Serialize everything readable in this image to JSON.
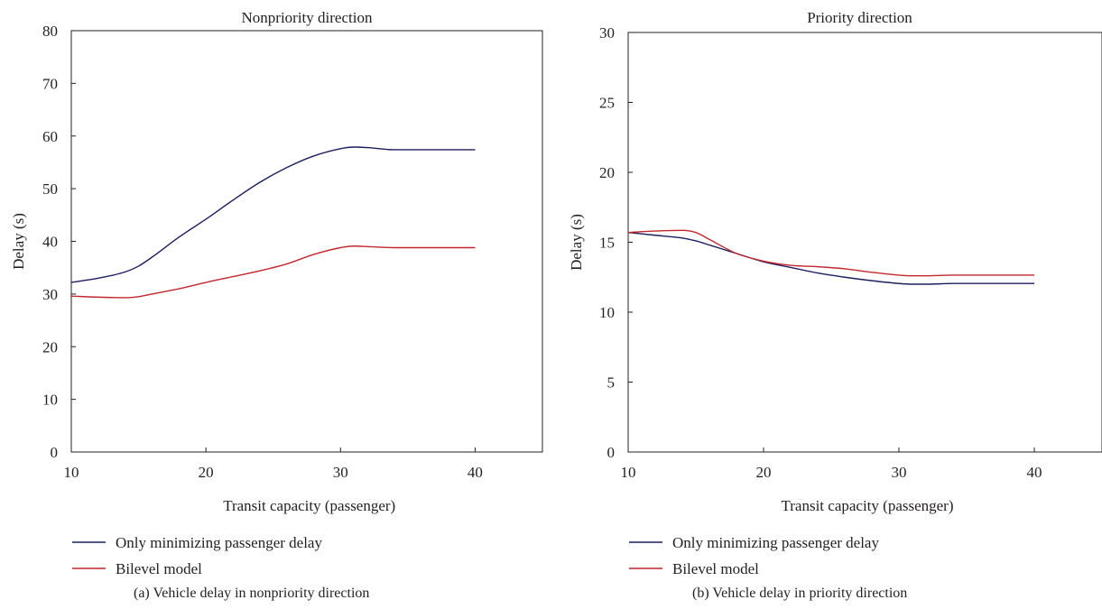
{
  "chart_data": [
    {
      "type": "line",
      "panel": "a",
      "title": "Nonpriority direction",
      "xlabel": "Transit capacity (passenger)",
      "ylabel": "Delay (s)",
      "xlim": [
        10,
        45
      ],
      "ylim": [
        0,
        80
      ],
      "xticks": [
        "10",
        "20",
        "30",
        "40"
      ],
      "yticks": [
        "0",
        "10",
        "20",
        "30",
        "40",
        "50",
        "60",
        "70",
        "80"
      ],
      "x": [
        10,
        12,
        14,
        15,
        16,
        18,
        20,
        22,
        24,
        26,
        28,
        30,
        31,
        32,
        34,
        36,
        38,
        40
      ],
      "series": [
        {
          "name": "Only minimizing passenger delay",
          "color": "#1b1f5e",
          "values": [
            32.2,
            33.0,
            34.2,
            35.3,
            37.0,
            40.8,
            44.2,
            47.8,
            51.2,
            54.0,
            56.2,
            57.6,
            57.9,
            57.8,
            57.4,
            57.4,
            57.4,
            57.4
          ]
        },
        {
          "name": "Bilevel model",
          "color": "#c1272d",
          "values": [
            29.6,
            29.4,
            29.3,
            29.5,
            30.0,
            31.0,
            32.2,
            33.3,
            34.4,
            35.7,
            37.5,
            38.8,
            39.1,
            39.0,
            38.8,
            38.8,
            38.8,
            38.8
          ]
        }
      ],
      "legend_position": "below",
      "caption": "(a)  Vehicle delay in nonpriority direction"
    },
    {
      "type": "line",
      "panel": "b",
      "title": "Priority direction",
      "xlabel": "Transit capacity (passenger)",
      "ylabel": "Delay (s)",
      "xlim": [
        10,
        45
      ],
      "ylim": [
        0,
        30
      ],
      "xticks": [
        "10",
        "20",
        "30",
        "40"
      ],
      "yticks": [
        "0",
        "5",
        "10",
        "15",
        "20",
        "25",
        "30"
      ],
      "x": [
        10,
        12,
        14,
        15,
        16,
        18,
        20,
        22,
        24,
        26,
        28,
        30,
        31,
        32,
        34,
        36,
        38,
        40
      ],
      "series": [
        {
          "name": "Only minimizing passenger delay",
          "color": "#1b1f5e",
          "values": [
            15.7,
            15.5,
            15.3,
            15.1,
            14.8,
            14.2,
            13.6,
            13.2,
            12.8,
            12.5,
            12.25,
            12.05,
            12.0,
            12.0,
            12.05,
            12.05,
            12.05,
            12.05
          ]
        },
        {
          "name": "Bilevel model",
          "color": "#c1272d",
          "values": [
            15.7,
            15.8,
            15.85,
            15.7,
            15.2,
            14.2,
            13.65,
            13.35,
            13.25,
            13.1,
            12.85,
            12.65,
            12.6,
            12.6,
            12.65,
            12.65,
            12.65,
            12.65
          ]
        }
      ],
      "legend_position": "below",
      "caption": "(b)  Vehicle delay in priority direction"
    }
  ]
}
